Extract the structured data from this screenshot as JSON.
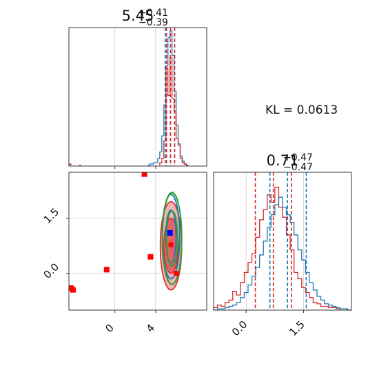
{
  "colors": {
    "blue": "#1f77b4",
    "red": "#d62728",
    "green": "#2ca02c",
    "blue_marker": "#0000ff",
    "red_marker": "#ff0000",
    "grid": "#cfcfcf"
  },
  "kl_text": "KL = 0.0613",
  "chart_data": [
    {
      "type": "histogram",
      "panel": "top-left marginal (parameter 1)",
      "title": {
        "median": "5.45",
        "plus": "+0.41",
        "minus": "−0.39"
      },
      "xlim": [
        -4.5,
        9.0
      ],
      "grid_x": [
        0,
        4
      ],
      "quantile_lines": {
        "blue": [
          4.93,
          5.45,
          5.86
        ],
        "red": [
          5.06,
          5.45,
          5.85
        ]
      },
      "series": [
        {
          "name": "",
          "color": "blue",
          "bins": [
            [
              3.2,
              0.0
            ],
            [
              3.4,
              0.01
            ],
            [
              3.6,
              0.01
            ],
            [
              3.8,
              0.02
            ],
            [
              4.0,
              0.02
            ],
            [
              4.2,
              0.05
            ],
            [
              4.4,
              0.1
            ],
            [
              4.6,
              0.22
            ],
            [
              4.8,
              0.45
            ],
            [
              5.0,
              0.74
            ],
            [
              5.2,
              0.95
            ],
            [
              5.4,
              1.0
            ],
            [
              5.6,
              0.82
            ],
            [
              5.8,
              0.55
            ],
            [
              6.0,
              0.3
            ],
            [
              6.2,
              0.16
            ],
            [
              6.4,
              0.07
            ],
            [
              6.6,
              0.03
            ],
            [
              6.8,
              0.01
            ],
            [
              7.0,
              0.0
            ]
          ]
        },
        {
          "name": "",
          "color": "red",
          "bins": [
            [
              -4.5,
              0.01
            ],
            [
              -3.5,
              0.0
            ],
            [
              4.4,
              0.02
            ],
            [
              4.6,
              0.05
            ],
            [
              4.8,
              0.18
            ],
            [
              5.0,
              0.72
            ],
            [
              5.2,
              0.52
            ],
            [
              5.4,
              0.8
            ],
            [
              5.6,
              0.5
            ],
            [
              5.8,
              0.4
            ],
            [
              6.0,
              0.2
            ],
            [
              6.2,
              0.15
            ],
            [
              6.4,
              0.05
            ],
            [
              6.6,
              0.02
            ],
            [
              6.8,
              0.01
            ],
            [
              7.0,
              0.0
            ]
          ]
        }
      ]
    },
    {
      "type": "scatter",
      "panel": "bottom-left joint (parameter 1 vs parameter 2)",
      "xlim": [
        -4.5,
        9.0
      ],
      "ylim": [
        -1.0,
        2.75
      ],
      "x_ticks": [
        "0",
        "4"
      ],
      "x_tick_values": [
        0,
        4
      ],
      "y_ticks": [
        "0.0",
        "1.5"
      ],
      "y_tick_values": [
        0.0,
        1.5
      ],
      "red_markers": [
        [
          2.9,
          2.7
        ],
        [
          -0.8,
          0.1
        ],
        [
          3.5,
          0.45
        ],
        [
          -4.3,
          -0.4
        ],
        [
          -4.1,
          -0.45
        ]
      ],
      "blue_marker": [
        5.4,
        1.1
      ],
      "red_center": [
        5.5,
        0.78
      ],
      "red_low": [
        6.0,
        0.0
      ],
      "contours": {
        "red": [
          {
            "cx": 5.5,
            "cy": 0.75,
            "rx": 1.05,
            "ry": 1.2
          },
          {
            "cx": 5.5,
            "cy": 0.75,
            "rx": 0.7,
            "ry": 0.75
          }
        ],
        "blue": [
          {
            "cx": 5.5,
            "cy": 1.0,
            "rx": 0.85,
            "ry": 1.15
          },
          {
            "cx": 5.5,
            "cy": 1.0,
            "rx": 0.5,
            "ry": 0.72
          }
        ],
        "green": [
          {
            "cx": 5.6,
            "cy": 0.95,
            "rx": 0.95,
            "ry": 1.25
          },
          {
            "cx": 5.6,
            "cy": 0.95,
            "rx": 0.55,
            "ry": 0.75
          }
        ]
      }
    },
    {
      "type": "histogram",
      "panel": "bottom-right marginal (parameter 2)",
      "title": {
        "median": "0.71",
        "plus": "+0.47",
        "minus": "−0.47"
      },
      "xlim": [
        -0.85,
        2.75
      ],
      "x_ticks": [
        "0.0",
        "1.5"
      ],
      "x_tick_values": [
        0.0,
        1.5
      ],
      "quantile_lines": {
        "blue": [
          0.62,
          1.08,
          1.57
        ],
        "red": [
          0.24,
          0.71,
          1.18
        ]
      },
      "series": [
        {
          "name": "",
          "color": "red",
          "bins": [
            [
              -0.85,
              0.02
            ],
            [
              -0.75,
              0.04
            ],
            [
              -0.65,
              0.03
            ],
            [
              -0.55,
              0.06
            ],
            [
              -0.45,
              0.08
            ],
            [
              -0.35,
              0.15
            ],
            [
              -0.25,
              0.12
            ],
            [
              -0.15,
              0.22
            ],
            [
              -0.05,
              0.3
            ],
            [
              0.05,
              0.38
            ],
            [
              0.15,
              0.45
            ],
            [
              0.25,
              0.58
            ],
            [
              0.35,
              0.72
            ],
            [
              0.45,
              0.8
            ],
            [
              0.55,
              0.92
            ],
            [
              0.65,
              0.86
            ],
            [
              0.75,
              0.98
            ],
            [
              0.85,
              0.82
            ],
            [
              0.95,
              0.74
            ],
            [
              1.05,
              0.6
            ],
            [
              1.15,
              0.48
            ],
            [
              1.25,
              0.3
            ],
            [
              1.35,
              0.25
            ],
            [
              1.45,
              0.18
            ],
            [
              1.55,
              0.14
            ],
            [
              1.65,
              0.1
            ],
            [
              1.75,
              0.06
            ],
            [
              1.85,
              0.05
            ],
            [
              1.95,
              0.03
            ],
            [
              2.05,
              0.03
            ],
            [
              2.15,
              0.02
            ],
            [
              2.25,
              0.02
            ],
            [
              2.35,
              0.01
            ],
            [
              2.45,
              0.01
            ],
            [
              2.55,
              0.01
            ],
            [
              2.65,
              0.0
            ]
          ]
        },
        {
          "name": "",
          "color": "blue",
          "bins": [
            [
              -0.85,
              0.0
            ],
            [
              -0.75,
              0.01
            ],
            [
              -0.65,
              0.01
            ],
            [
              -0.55,
              0.02
            ],
            [
              -0.45,
              0.03
            ],
            [
              -0.35,
              0.04
            ],
            [
              -0.25,
              0.06
            ],
            [
              -0.15,
              0.1
            ],
            [
              -0.05,
              0.14
            ],
            [
              0.05,
              0.2
            ],
            [
              0.15,
              0.27
            ],
            [
              0.25,
              0.34
            ],
            [
              0.35,
              0.44
            ],
            [
              0.45,
              0.55
            ],
            [
              0.55,
              0.66
            ],
            [
              0.65,
              0.76
            ],
            [
              0.75,
              0.84
            ],
            [
              0.85,
              0.9
            ],
            [
              0.95,
              0.82
            ],
            [
              1.05,
              0.76
            ],
            [
              1.15,
              0.7
            ],
            [
              1.25,
              0.6
            ],
            [
              1.35,
              0.48
            ],
            [
              1.45,
              0.4
            ],
            [
              1.55,
              0.3
            ],
            [
              1.65,
              0.22
            ],
            [
              1.75,
              0.16
            ],
            [
              1.85,
              0.11
            ],
            [
              1.95,
              0.08
            ],
            [
              2.05,
              0.05
            ],
            [
              2.15,
              0.04
            ],
            [
              2.25,
              0.03
            ],
            [
              2.35,
              0.02
            ],
            [
              2.45,
              0.01
            ],
            [
              2.55,
              0.01
            ],
            [
              2.65,
              0.0
            ]
          ]
        }
      ]
    }
  ]
}
